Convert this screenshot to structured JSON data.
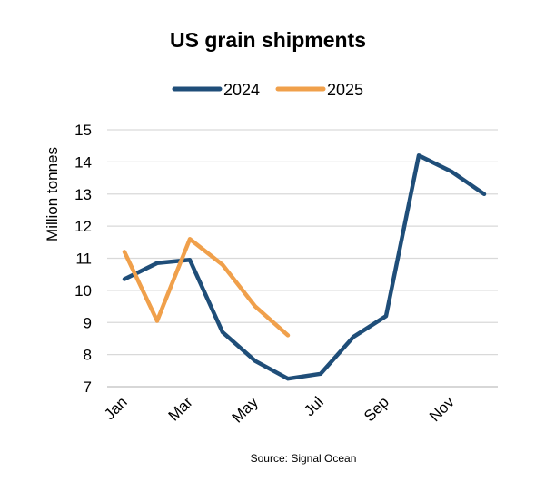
{
  "chart_data": {
    "type": "line",
    "title": "US grain shipments",
    "ylabel": "Million tonnes",
    "xlabel": "",
    "source": "Source: Signal Ocean",
    "months": [
      "Jan",
      "Feb",
      "Mar",
      "Apr",
      "May",
      "Jun",
      "Jul",
      "Aug",
      "Sep",
      "Oct",
      "Nov",
      "Dec"
    ],
    "x_tick_labels": [
      "Jan",
      "Mar",
      "May",
      "Jul",
      "Sep",
      "Nov"
    ],
    "y_ticks": [
      7,
      8,
      9,
      10,
      11,
      12,
      13,
      14,
      15
    ],
    "ylim": [
      7,
      15
    ],
    "grid": true,
    "legend_position": "top",
    "series": [
      {
        "name": "2024",
        "color": "#1f4e79",
        "values": [
          10.35,
          10.85,
          10.95,
          8.7,
          7.8,
          7.25,
          7.4,
          8.55,
          9.2,
          14.2,
          13.7,
          13.0
        ]
      },
      {
        "name": "2025",
        "color": "#f0a04b",
        "values": [
          11.2,
          9.05,
          11.6,
          10.8,
          9.5,
          8.6
        ]
      }
    ]
  }
}
